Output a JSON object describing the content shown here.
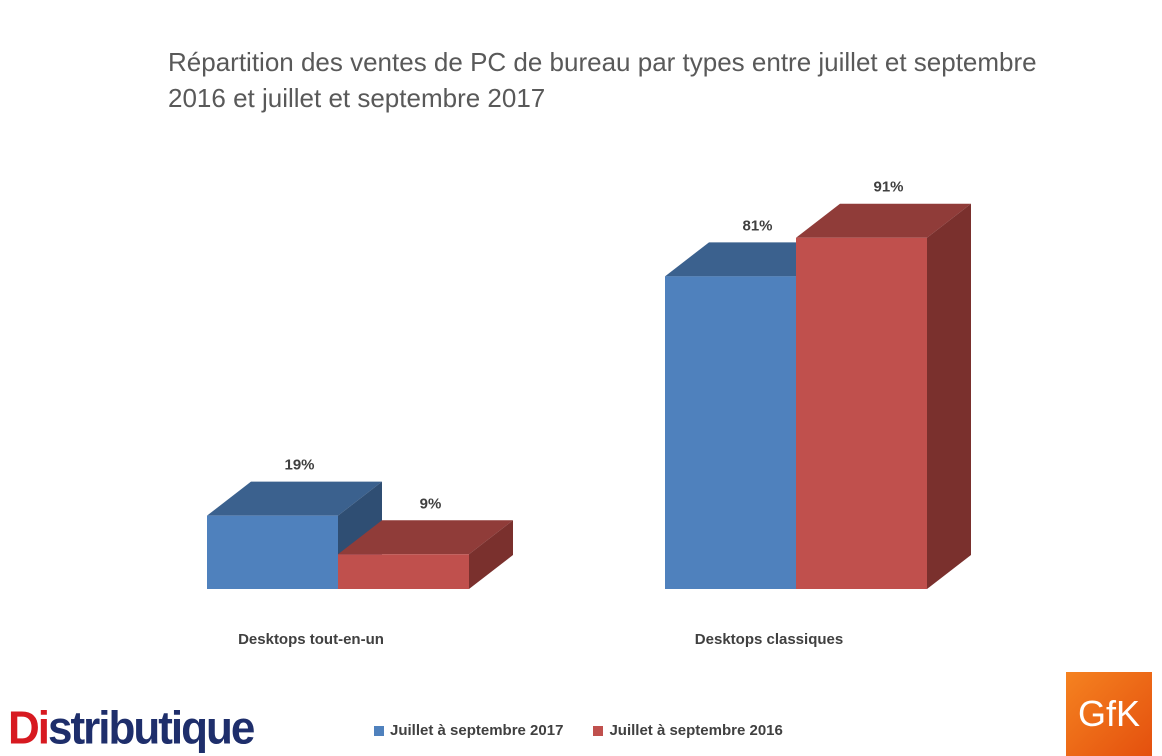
{
  "chart_data": {
    "type": "bar",
    "title": "Répartition des ventes de PC de bureau par types entre juillet et septembre 2016 et juillet et septembre 2017",
    "categories": [
      "Desktops tout-en-un",
      "Desktops classiques"
    ],
    "series": [
      {
        "name": "Juillet à septembre 2017",
        "values": [
          19,
          81
        ],
        "labels": [
          "19%",
          "81%"
        ],
        "color": "#4f81bd"
      },
      {
        "name": "Juillet à septembre 2016",
        "values": [
          9,
          91
        ],
        "labels": [
          "9%",
          "91%"
        ],
        "color": "#c0504d"
      }
    ],
    "ylim": [
      0,
      100
    ],
    "grid": false,
    "legend": "bottom"
  },
  "logos": {
    "distributique_text": "Distributique",
    "gfk_text": "GfK"
  }
}
